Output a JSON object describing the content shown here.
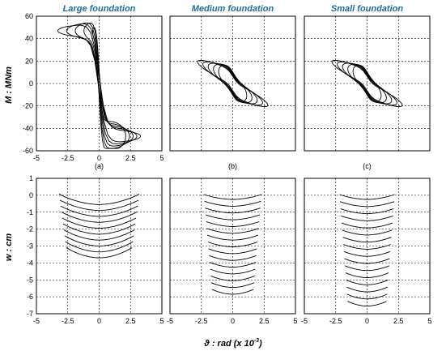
{
  "chart_data": [
    {
      "type": "line",
      "panel": "top-left",
      "title": "Large foundation",
      "sublabel": "(a)",
      "ylabel": "M : MNm",
      "xlim": [
        -5,
        5
      ],
      "ylim": [
        -60,
        60
      ],
      "yticks": [
        -60,
        -40,
        -20,
        0,
        20,
        40,
        60
      ],
      "xticks": [
        -5,
        -2.5,
        0,
        2.5,
        5
      ],
      "shape": "s-curve",
      "params": {
        "amp": 47,
        "k": 1.8,
        "swings": [
          1.0,
          0.85,
          0.7,
          0.55,
          0.4
        ],
        "loop": 6
      }
    },
    {
      "type": "line",
      "panel": "top-middle",
      "title": "Medium foundation",
      "sublabel": "(b)",
      "ylim": [
        -60,
        60
      ],
      "xlim": [
        -5,
        5
      ],
      "shape": "parallelogram",
      "params": {
        "amp": 22,
        "slope": 10,
        "swings": [
          1.0,
          0.85,
          0.7,
          0.55,
          0.4
        ],
        "loop": 4
      }
    },
    {
      "type": "line",
      "panel": "top-right",
      "title": "Small foundation",
      "sublabel": "(c)",
      "ylim": [
        -60,
        60
      ],
      "xlim": [
        -5,
        5
      ],
      "shape": "parallelogram",
      "params": {
        "amp": 22,
        "slope": 10,
        "swings": [
          1.0,
          0.85,
          0.7,
          0.55,
          0.4
        ],
        "loop": 4
      }
    },
    {
      "type": "line",
      "panel": "bottom-left",
      "ylabel": "w : cm",
      "xlim": [
        -5,
        5
      ],
      "ylim": [
        -7,
        1
      ],
      "yticks": [
        -7,
        -6,
        -5,
        -4,
        -3,
        -2,
        -1,
        0,
        1
      ],
      "xticks": [
        -5,
        -2.5,
        0,
        2.5,
        5
      ],
      "shape": "arches",
      "params": {
        "cycles": 10,
        "step": 0.35,
        "rise": 0.55,
        "halfwidth": 3.2
      }
    },
    {
      "type": "line",
      "panel": "bottom-middle",
      "xlim": [
        -5,
        5
      ],
      "ylim": [
        -7,
        1
      ],
      "xticks": [
        -5,
        -2.5,
        0,
        2.5,
        5
      ],
      "shape": "arches",
      "params": {
        "cycles": 15,
        "step": 0.4,
        "rise": 0.25,
        "halfwidth": 2.3
      }
    },
    {
      "type": "line",
      "panel": "bottom-right",
      "xlim": [
        -5,
        5
      ],
      "ylim": [
        -7,
        1
      ],
      "xticks": [
        -5,
        -2.5,
        0,
        2.5,
        5
      ],
      "shape": "arches",
      "params": {
        "cycles": 16,
        "step": 0.42,
        "rise": 0.25,
        "halfwidth": 2.2
      }
    }
  ],
  "xlabel": "ϑ : rad  (x 10",
  "xlabel_exp": "-3",
  "xlabel_close": ")"
}
